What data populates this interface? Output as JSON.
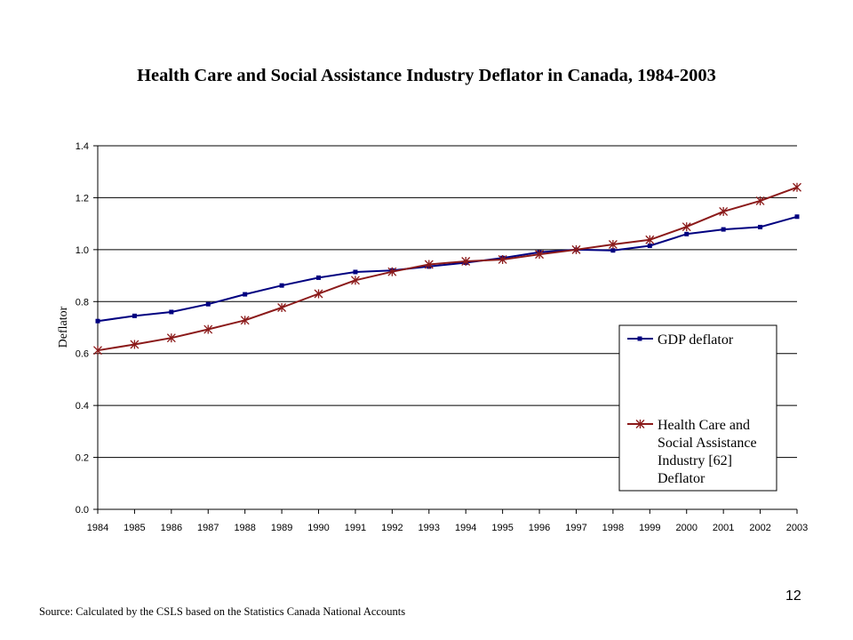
{
  "title": "Health Care and Social Assistance Industry Deflator in Canada, 1984-2003",
  "source_note": "Source: Calculated by the CSLS based on the Statistics Canada National Accounts",
  "page_number": "12",
  "chart_data": {
    "type": "line",
    "title": "Health Care and Social Assistance Industry Deflator in Canada, 1984-2003",
    "xlabel": "",
    "ylabel": "Deflator",
    "categories": [
      "1984",
      "1985",
      "1986",
      "1987",
      "1988",
      "1989",
      "1990",
      "1991",
      "1992",
      "1993",
      "1994",
      "1995",
      "1996",
      "1997",
      "1998",
      "1999",
      "2000",
      "2001",
      "2002",
      "2003"
    ],
    "ylim": [
      0,
      1.4
    ],
    "yticks": [
      0.0,
      0.2,
      0.4,
      0.6,
      0.8,
      1.0,
      1.2,
      1.4
    ],
    "ytick_labels": [
      "0.0",
      "0.2",
      "0.4",
      "0.6",
      "0.8",
      "1.0",
      "1.2",
      "1.4"
    ],
    "grid": true,
    "legend_position": "right",
    "series": [
      {
        "name": "GDP deflator",
        "color": "#000080",
        "marker": "square",
        "values": [
          0.725,
          0.745,
          0.76,
          0.79,
          0.828,
          0.862,
          0.892,
          0.914,
          0.92,
          0.935,
          0.95,
          0.968,
          0.99,
          1.0,
          0.997,
          1.015,
          1.06,
          1.078,
          1.087,
          1.127
        ]
      },
      {
        "name": "Health Care and Social Assistance Industry [62] Deflator",
        "legend_lines": [
          "Health Care and",
          "Social Assistance",
          "Industry [62]",
          "Deflator"
        ],
        "color": "#8B1A1A",
        "marker": "star",
        "values": [
          0.612,
          0.635,
          0.66,
          0.693,
          0.728,
          0.777,
          0.83,
          0.882,
          0.915,
          0.943,
          0.955,
          0.962,
          0.982,
          1.0,
          1.02,
          1.038,
          1.088,
          1.147,
          1.188,
          1.24
        ]
      }
    ]
  }
}
